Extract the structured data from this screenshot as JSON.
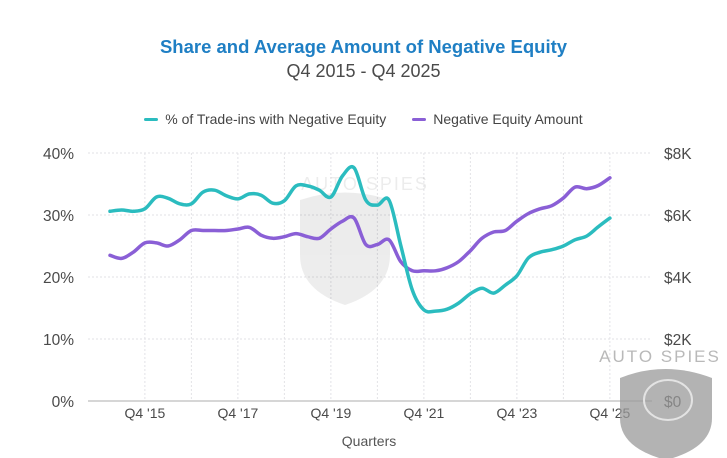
{
  "colors": {
    "title": "#1f7fc4",
    "teal": "#2bbcbf",
    "purple": "#8a5fd6",
    "grid": "#e2e2e6",
    "axis": "#c9c9c9"
  },
  "watermark": {
    "text": "AUTO SPIES",
    "icon": "shield-globe-icon"
  },
  "chart_data": {
    "type": "line",
    "title": "Share and Average Amount of Negative Equity",
    "subtitle": "Q4 2015 - Q4 2025",
    "xlabel": "Quarters",
    "ylabel_left": "",
    "ylabel_right": "",
    "grid": true,
    "legend_position": "top-center",
    "x_tick_labels": [
      "Q4 '15",
      "Q4 '17",
      "Q4 '19",
      "Q4 '21",
      "Q4 '23",
      "Q4 '25"
    ],
    "x_tick_index": [
      3,
      11,
      19,
      27,
      35,
      43
    ],
    "y_left": {
      "ticks": [
        "0%",
        "10%",
        "20%",
        "30%",
        "40%"
      ],
      "range": [
        0,
        40
      ]
    },
    "y_right": {
      "ticks": [
        "$0",
        "$2K",
        "$4K",
        "$6K",
        "$8K"
      ],
      "range": [
        0,
        8000
      ]
    },
    "x": [
      "Q1 '15",
      "Q2 '15",
      "Q3 '15",
      "Q4 '15",
      "Q1 '16",
      "Q2 '16",
      "Q3 '16",
      "Q4 '16",
      "Q1 '17",
      "Q2 '17",
      "Q3 '17",
      "Q4 '17",
      "Q1 '18",
      "Q2 '18",
      "Q3 '18",
      "Q4 '18",
      "Q1 '19",
      "Q2 '19",
      "Q3 '19",
      "Q4 '19",
      "Q1 '20",
      "Q2 '20",
      "Q3 '20",
      "Q4 '20",
      "Q1 '21",
      "Q2 '21",
      "Q3 '21",
      "Q4 '21",
      "Q1 '22",
      "Q2 '22",
      "Q3 '22",
      "Q4 '22",
      "Q1 '23",
      "Q2 '23",
      "Q3 '23",
      "Q4 '23",
      "Q1 '24",
      "Q2 '24",
      "Q3 '24",
      "Q4 '24",
      "Q1 '25",
      "Q2 '25",
      "Q3 '25",
      "Q4 '25"
    ],
    "series": [
      {
        "name": "% of Trade-ins with Negative Equity",
        "axis": "left",
        "color": "#2bbcbf",
        "values": [
          30.6,
          30.8,
          30.6,
          31.0,
          32.9,
          32.7,
          31.8,
          31.8,
          33.7,
          34.0,
          33.1,
          32.6,
          33.4,
          33.2,
          31.9,
          32.3,
          34.7,
          34.7,
          34.0,
          32.9,
          36.3,
          37.6,
          32.4,
          31.6,
          32.4,
          25.2,
          17.9,
          14.7,
          14.5,
          14.8,
          15.8,
          17.3,
          18.2,
          17.4,
          18.7,
          20.2,
          23.1,
          24.0,
          24.4,
          25.0,
          26.0,
          26.6,
          28.1,
          29.5
        ]
      },
      {
        "name": "Negative Equity Amount",
        "axis": "right",
        "color": "#8a5fd6",
        "values": [
          4700,
          4600,
          4800,
          5100,
          5100,
          5000,
          5200,
          5500,
          5500,
          5500,
          5500,
          5550,
          5600,
          5350,
          5250,
          5300,
          5400,
          5300,
          5250,
          5550,
          5800,
          5900,
          5050,
          5050,
          5200,
          4500,
          4200,
          4200,
          4200,
          4300,
          4500,
          4850,
          5250,
          5450,
          5500,
          5800,
          6050,
          6200,
          6300,
          6550,
          6900,
          6850,
          6950,
          7200
        ]
      }
    ]
  }
}
